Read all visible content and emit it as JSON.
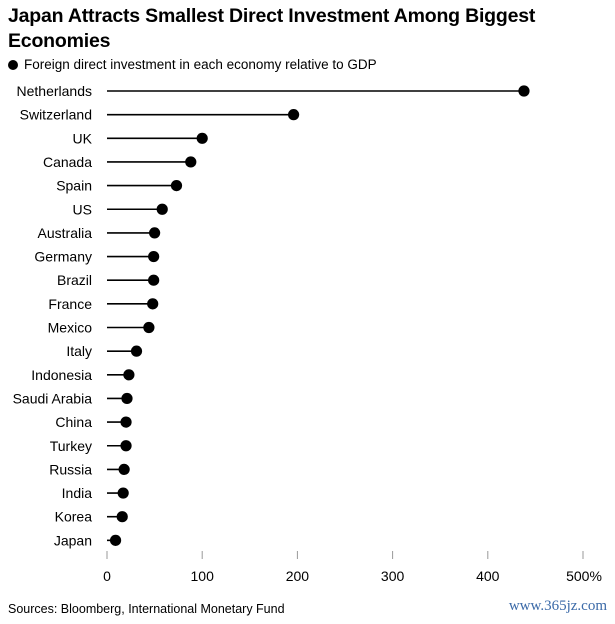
{
  "title": "Japan Attracts Smallest Direct Investment Among Biggest Economies",
  "legend_label": "Foreign direct investment in each economy relative to GDP",
  "source": "Sources: Bloomberg, International Monetary Fund",
  "watermark": "www.365jz.com",
  "colors": {
    "mark": "#000000",
    "axis_tick": "#999999"
  },
  "chart_data": {
    "type": "scatter",
    "orientation": "horizontal",
    "title": "Japan Attracts Smallest Direct Investment Among Biggest Economies",
    "categories": [
      "Netherlands",
      "Switzerland",
      "UK",
      "Canada",
      "Spain",
      "US",
      "Australia",
      "Germany",
      "Brazil",
      "France",
      "Mexico",
      "Italy",
      "Indonesia",
      "Saudi Arabia",
      "China",
      "Turkey",
      "Russia",
      "India",
      "Korea",
      "Japan"
    ],
    "series": [
      {
        "name": "Foreign direct investment in each economy relative to GDP",
        "values": [
          438,
          196,
          100,
          88,
          73,
          58,
          50,
          49,
          49,
          48,
          44,
          31,
          23,
          21,
          20,
          20,
          18,
          17,
          16,
          9
        ]
      }
    ],
    "x_ticks": [
      "0",
      "100",
      "200",
      "300",
      "400",
      "500%"
    ],
    "xlim": [
      0,
      500
    ],
    "grid": false
  }
}
